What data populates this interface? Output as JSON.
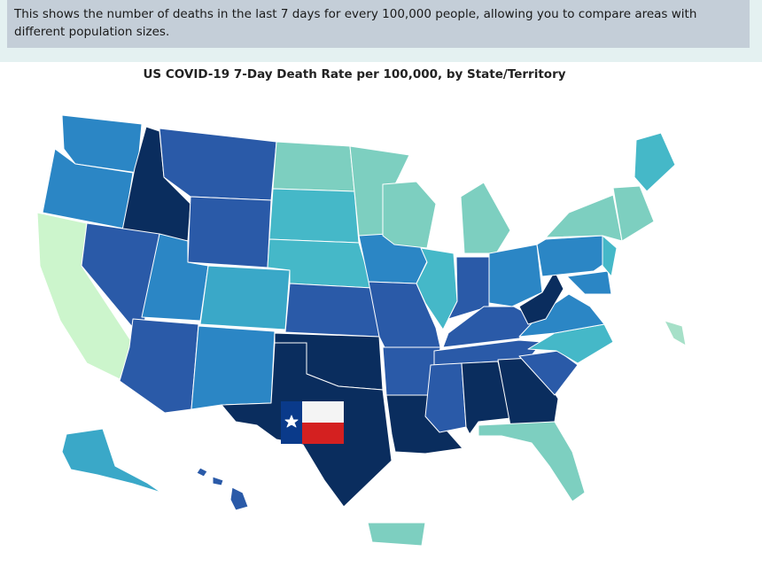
{
  "header": {
    "description": "This shows the number of deaths in the last 7 days for every 100,000 people, allowing you to compare areas with different population sizes."
  },
  "map": {
    "title": "US COVID-19 7-Day Death Rate per 100,000, by State/Territory"
  }
}
